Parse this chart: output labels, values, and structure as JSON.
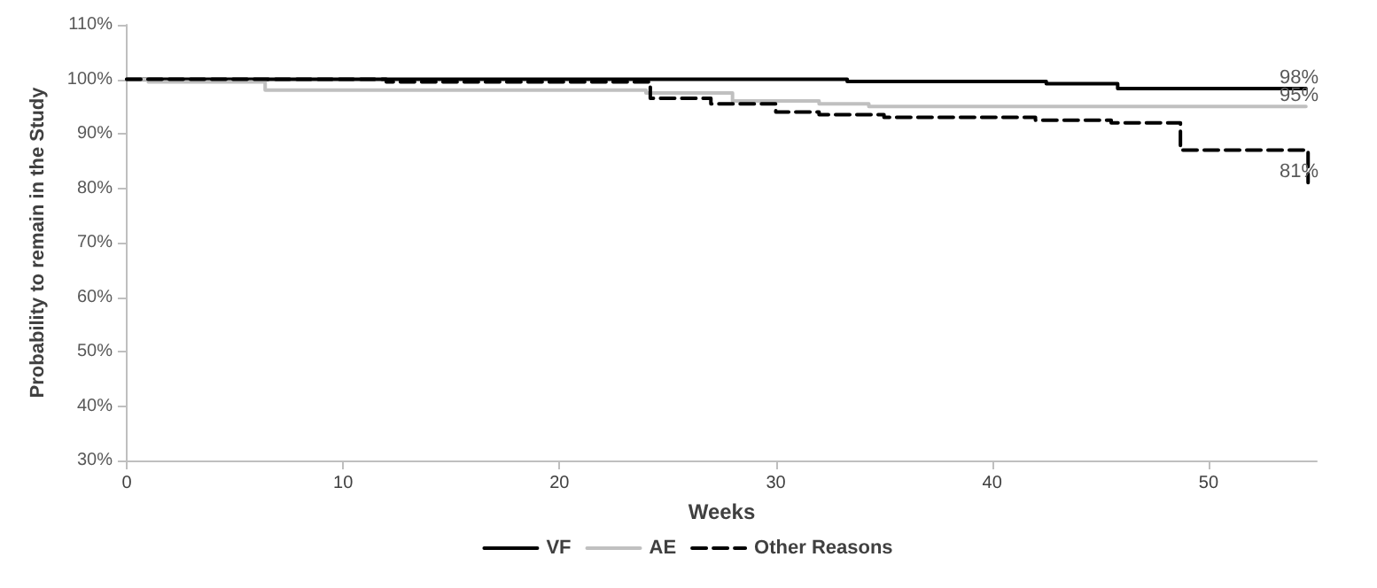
{
  "chart_data": {
    "type": "step",
    "xlabel": "Weeks",
    "ylabel": "Probability to remain in the Study",
    "xlim": [
      0,
      55
    ],
    "xticks": [
      0,
      10,
      20,
      30,
      40,
      50
    ],
    "ylim": [
      30,
      110
    ],
    "yticks": [
      {
        "value": 30,
        "label": "30%"
      },
      {
        "value": 40,
        "label": "40%"
      },
      {
        "value": 50,
        "label": "50%"
      },
      {
        "value": 60,
        "label": "60%"
      },
      {
        "value": 70,
        "label": "70%"
      },
      {
        "value": 80,
        "label": "80%"
      },
      {
        "value": 90,
        "label": "90%"
      },
      {
        "value": 100,
        "label": "100%"
      },
      {
        "value": 110,
        "label": "110%"
      }
    ],
    "grid": false,
    "legend": "bottom",
    "marker": "none",
    "series": [
      {
        "name": "VF",
        "color": "#000000",
        "line_style": "solid",
        "x": [
          0,
          33.3,
          42.5,
          45.8,
          54.5
        ],
        "values": [
          100,
          99.6,
          99.2,
          98.3,
          98.3
        ]
      },
      {
        "name": "AE",
        "color": "#c0c0c0",
        "line_style": "solid",
        "x": [
          0,
          1,
          6.4,
          24,
          28,
          32,
          34.3,
          54.5
        ],
        "values": [
          100,
          99.5,
          98,
          97.5,
          96,
          95.5,
          95,
          95
        ]
      },
      {
        "name": "Other Reasons",
        "color": "#000000",
        "line_style": "dashed",
        "x": [
          0,
          12,
          24.2,
          27,
          30,
          32,
          35,
          42,
          45.5,
          48.7,
          54.6
        ],
        "values": [
          100,
          99.5,
          96.5,
          95.5,
          94,
          93.5,
          93,
          92.5,
          92,
          87,
          81
        ]
      }
    ],
    "annotations": [
      {
        "text": "98%",
        "y": 98.3
      },
      {
        "text": "95%",
        "y": 95
      },
      {
        "text": "81%",
        "y": 81
      }
    ]
  }
}
